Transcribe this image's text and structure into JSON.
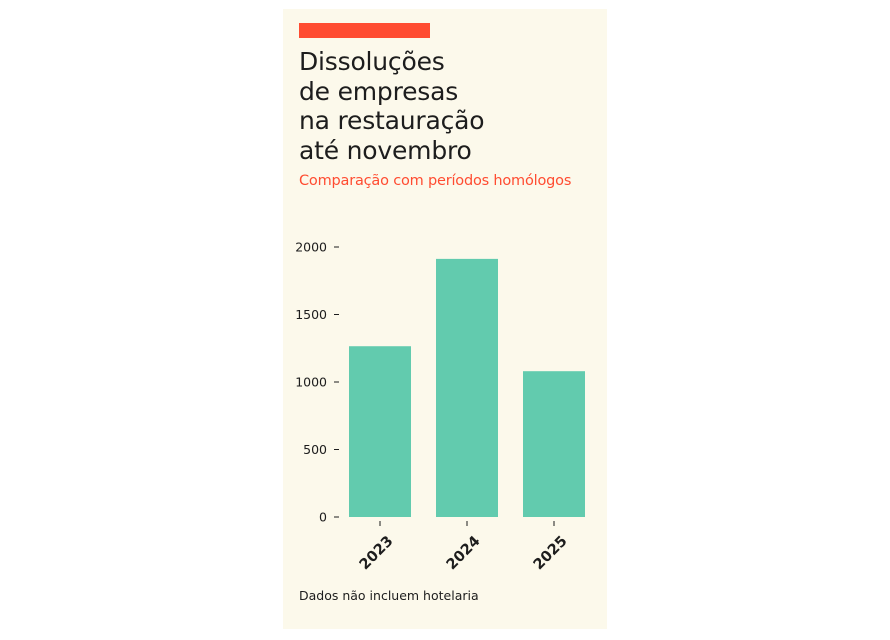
{
  "header": {
    "title": "Dissoluções\nde empresas\nna restauração\naté novembro",
    "subtitle": "Comparação com períodos homólogos"
  },
  "footer": {
    "note": "Dados não incluem hotelaria"
  },
  "colors": {
    "accent": "#ff4c31",
    "bar": "#62cbae",
    "card_background": "#fcf9eb",
    "text": "#1d1d1d"
  },
  "chart_data": {
    "type": "bar",
    "categories": [
      "2023",
      "2024",
      "2025"
    ],
    "values": [
      1265,
      1912,
      1080
    ],
    "ylim": [
      0,
      2000
    ],
    "yticks": [
      0,
      500,
      1000,
      1500,
      2000
    ],
    "xlabel": "",
    "ylabel": "",
    "grid": false,
    "legend": "none"
  }
}
